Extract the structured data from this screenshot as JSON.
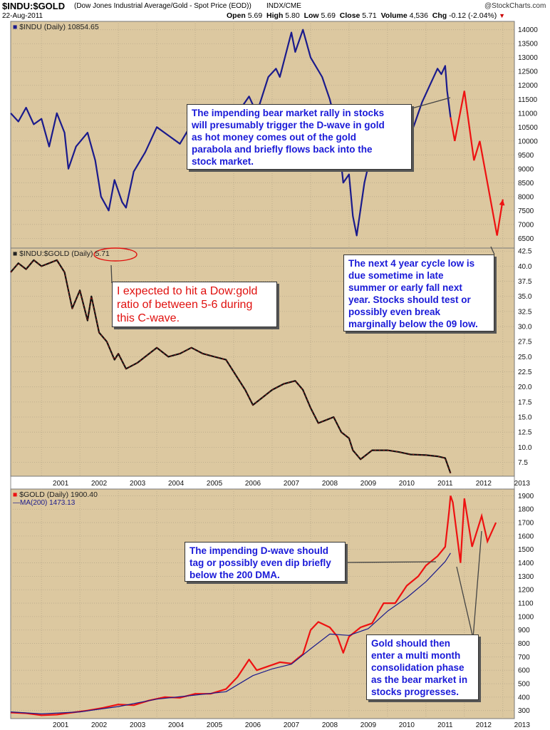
{
  "header": {
    "symbol": "$INDU:$GOLD",
    "description": "(Dow Jones Industrial Average/Gold - Spot Price (EOD))",
    "exchange": "INDX/CME",
    "date": "22-Aug-2011",
    "credit": "@StockCharts.com",
    "ohlc": [
      {
        "label": "Open",
        "value": "5.69"
      },
      {
        "label": "High",
        "value": "5.80"
      },
      {
        "label": "Low",
        "value": "5.69"
      },
      {
        "label": "Close",
        "value": "5.71"
      },
      {
        "label": "Volume",
        "value": "4,536"
      },
      {
        "label": "Chg",
        "value": "-0.12 (-2.04%)"
      }
    ]
  },
  "annotations": {
    "indu_note": "The impending bear market rally in stocks\nwill presumably trigger the D-wave in gold\nas hot money comes out of the gold\nparabola and briefly flows back into the\nstock market.",
    "cycle_note": "The next 4 year cycle low is\ndue sometime in late\nsummer or early fall next\nyear. Stocks should test or\npossibly even break\nmarginally below the 09 low.",
    "ratio_note": "I expected to hit a Dow:gold\nratio of between 5-6 during\nthis C-wave.",
    "dwave_note": "The impending D-wave should\ntag or possibly even dip briefly\nbelow the 200 DMA.",
    "gold_note": "Gold should then\nenter a multi month\nconsolidation phase\nas the bear market in\nstocks progresses."
  },
  "colors": {
    "panel_bg": "#dcc8a0",
    "indu_line": "#1a1a8c",
    "ratio_line": "#111111",
    "ratio_accent": "#e01010",
    "gold_line": "#ee1111",
    "ma_line": "#1a1a8c",
    "projection": "#ee1111",
    "note_blue": "#1a1ad8",
    "note_red": "#e0100e"
  },
  "chart_data": [
    {
      "type": "line",
      "panel": "indu",
      "legend": "$INDU (Daily) 10854.65",
      "yticks": [
        6500,
        7000,
        7500,
        8000,
        8500,
        9000,
        9500,
        10000,
        10500,
        11000,
        11500,
        12000,
        12500,
        13000,
        13500,
        14000
      ],
      "ylim": [
        6150,
        14300
      ],
      "xlim": [
        2000.2,
        2013.3
      ],
      "series": [
        {
          "x": [
            2000.2,
            2000.4,
            2000.6,
            2000.8,
            2001.0,
            2001.2,
            2001.4,
            2001.6,
            2001.7,
            2001.9,
            2002.2,
            2002.4,
            2002.55,
            2002.75,
            2002.9,
            2003.1,
            2003.2,
            2003.4,
            2003.7,
            2004.0,
            2004.3,
            2004.6,
            2004.9,
            2005.2,
            2005.5,
            2005.8,
            2006.1,
            2006.4,
            2006.6,
            2006.9,
            2007.1,
            2007.2,
            2007.5,
            2007.6,
            2007.8,
            2008.0,
            2008.3,
            2008.5,
            2008.7,
            2008.85,
            2009.0,
            2009.1,
            2009.2,
            2009.4,
            2009.6,
            2009.9,
            2010.2,
            2010.3,
            2010.5,
            2010.7,
            2010.9,
            2011.1,
            2011.3,
            2011.4,
            2011.5,
            2011.55,
            2011.64
          ],
          "y": [
            11000,
            10700,
            11200,
            10600,
            10800,
            9800,
            11000,
            10300,
            9000,
            9800,
            10300,
            9300,
            8000,
            7500,
            8600,
            7800,
            7600,
            8900,
            9600,
            10500,
            10200,
            9900,
            10600,
            10500,
            10300,
            10600,
            11000,
            11600,
            11000,
            12300,
            12600,
            12300,
            13900,
            13200,
            14000,
            13000,
            12300,
            11500,
            10400,
            8500,
            8800,
            7300,
            6600,
            8500,
            9700,
            10400,
            10600,
            11000,
            9900,
            10600,
            11400,
            12000,
            12600,
            12400,
            12700,
            11800,
            10850
          ]
        }
      ],
      "projection": {
        "x": [
          2011.64,
          2011.75,
          2012.0,
          2012.25,
          2012.4,
          2012.85,
          2013.0
        ],
        "y": [
          10850,
          10000,
          11800,
          9300,
          10000,
          6600,
          7900
        ]
      }
    },
    {
      "type": "line",
      "panel": "ratio",
      "legend": "$INDU:$GOLD (Daily) 5.71",
      "yticks": [
        7.5,
        10.0,
        12.5,
        15.0,
        17.5,
        20.0,
        22.5,
        25.0,
        27.5,
        30.0,
        32.5,
        35.0,
        37.5,
        40.0,
        42.5
      ],
      "ylim": [
        5.2,
        43.0
      ],
      "xlim": [
        2000.2,
        2013.3
      ],
      "series": [
        {
          "x": [
            2000.2,
            2000.4,
            2000.6,
            2000.8,
            2001.0,
            2001.2,
            2001.4,
            2001.6,
            2001.7,
            2001.8,
            2002.0,
            2002.2,
            2002.3,
            2002.5,
            2002.7,
            2002.9,
            2003.0,
            2003.2,
            2003.5,
            2003.8,
            2004.0,
            2004.3,
            2004.6,
            2004.9,
            2005.2,
            2005.5,
            2005.8,
            2006.1,
            2006.3,
            2006.5,
            2006.8,
            2007.0,
            2007.3,
            2007.6,
            2007.8,
            2008.0,
            2008.2,
            2008.4,
            2008.6,
            2008.8,
            2009.0,
            2009.1,
            2009.3,
            2009.6,
            2010.0,
            2010.3,
            2010.6,
            2011.0,
            2011.3,
            2011.5,
            2011.64
          ],
          "y": [
            39.0,
            40.5,
            39.5,
            41.0,
            40.0,
            40.5,
            41.0,
            39.0,
            36.0,
            33.0,
            36.0,
            31.0,
            35.0,
            29.0,
            27.5,
            24.5,
            25.5,
            23.0,
            24.0,
            25.5,
            26.5,
            25.0,
            25.5,
            26.5,
            25.5,
            25.0,
            24.5,
            21.5,
            19.5,
            17.0,
            18.5,
            19.5,
            20.5,
            21.0,
            19.5,
            16.5,
            14.0,
            14.5,
            15.0,
            12.5,
            11.5,
            9.5,
            8.0,
            9.5,
            9.5,
            9.2,
            8.8,
            8.7,
            8.5,
            8.2,
            5.71
          ]
        }
      ]
    },
    {
      "type": "line",
      "panel": "gold",
      "legend": "$GOLD (Daily) 1900.40",
      "ma_legend": "MA(200) 1473.13",
      "yticks": [
        300,
        400,
        500,
        600,
        700,
        800,
        900,
        1000,
        1100,
        1200,
        1300,
        1400,
        1500,
        1600,
        1700,
        1800,
        1900
      ],
      "ylim": [
        240,
        1950
      ],
      "xlim": [
        2000.2,
        2013.3
      ],
      "xticks": [
        "2001",
        "2002",
        "2003",
        "2004",
        "2005",
        "2006",
        "2007",
        "2008",
        "2009",
        "2010",
        "2011",
        "2012",
        "2013"
      ],
      "series": [
        {
          "name": "gold",
          "x": [
            2000.2,
            2000.6,
            2001.0,
            2001.4,
            2001.8,
            2002.2,
            2002.6,
            2003.0,
            2003.4,
            2003.8,
            2004.2,
            2004.6,
            2005.0,
            2005.4,
            2005.8,
            2006.1,
            2006.4,
            2006.6,
            2006.9,
            2007.2,
            2007.5,
            2007.8,
            2008.0,
            2008.2,
            2008.5,
            2008.7,
            2008.85,
            2009.0,
            2009.3,
            2009.6,
            2009.9,
            2010.2,
            2010.5,
            2010.8,
            2011.0,
            2011.3,
            2011.5,
            2011.6,
            2011.64
          ],
          "y": [
            285,
            280,
            265,
            270,
            285,
            300,
            320,
            345,
            340,
            375,
            400,
            395,
            425,
            425,
            460,
            550,
            680,
            600,
            630,
            660,
            650,
            720,
            900,
            960,
            920,
            850,
            730,
            850,
            920,
            950,
            1100,
            1100,
            1230,
            1300,
            1380,
            1450,
            1520,
            1780,
            1900
          ]
        },
        {
          "name": "MA(200)",
          "x": [
            2000.2,
            2001.0,
            2002.0,
            2003.0,
            2004.0,
            2005.0,
            2005.8,
            2006.5,
            2007.0,
            2007.5,
            2008.0,
            2008.5,
            2009.0,
            2009.5,
            2010.0,
            2010.5,
            2011.0,
            2011.5,
            2011.64
          ],
          "y": [
            290,
            275,
            290,
            330,
            385,
            415,
            440,
            560,
            610,
            645,
            760,
            870,
            860,
            910,
            1040,
            1140,
            1260,
            1410,
            1473
          ]
        }
      ],
      "projection": {
        "x": [
          2011.64,
          2011.7,
          2011.9,
          2012.0,
          2012.2,
          2012.45,
          2012.6,
          2012.82
        ],
        "y": [
          1900,
          1850,
          1400,
          1880,
          1520,
          1750,
          1560,
          1700
        ]
      }
    }
  ]
}
